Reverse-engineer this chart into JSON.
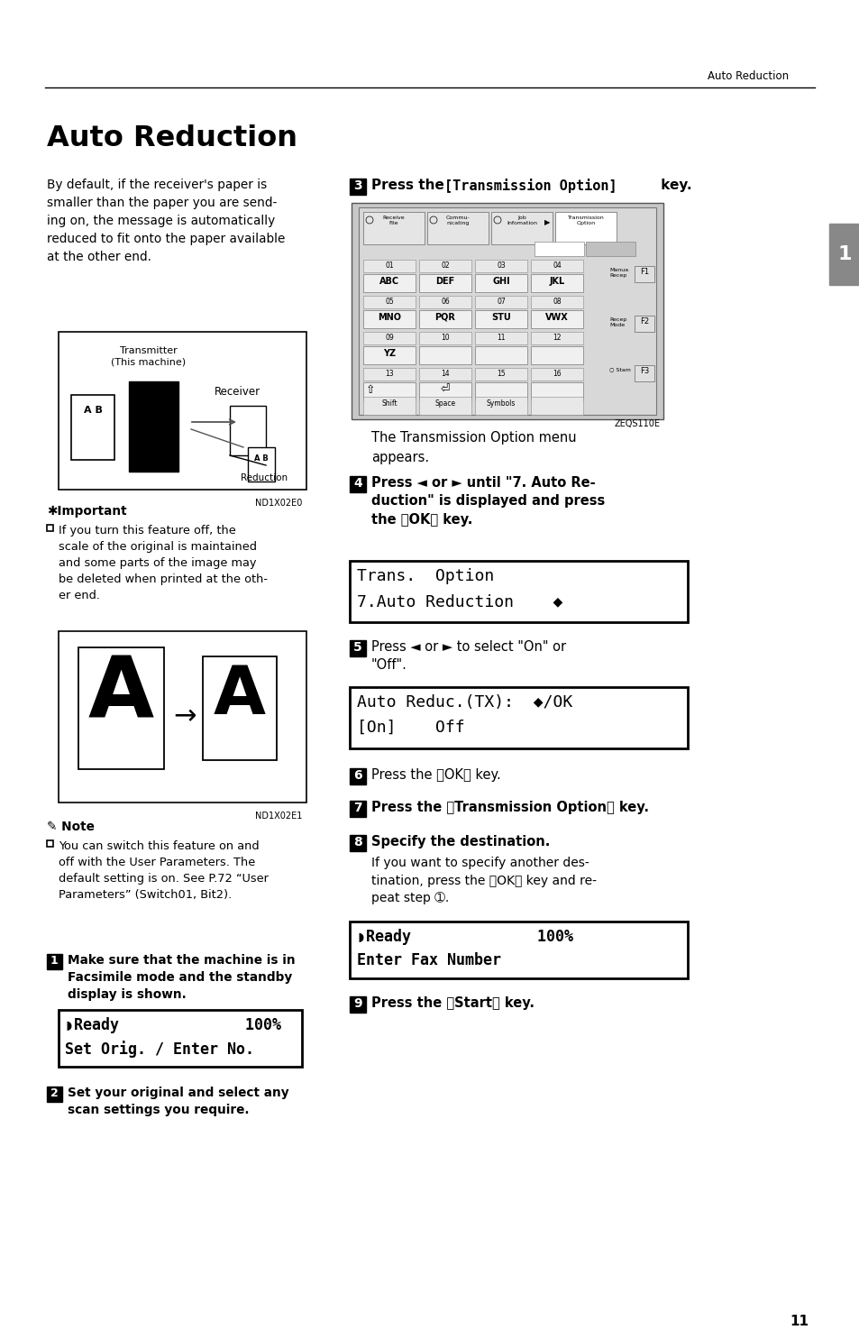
{
  "page_title": "Auto Reduction",
  "header_right": "Auto Reduction",
  "page_number": "11",
  "background_color": "#ffffff",
  "text_color": "#000000",
  "title": "Auto Reduction",
  "intro_text": "By default, if the receiver's paper is\nsmaller than the paper you are send-\ning on, the message is automatically\nreduced to fit onto the paper available\nat the other end.",
  "step3_label": "3",
  "step3_text1": "Press the ",
  "step3_bracket1": "[",
  "step3_transmission": "Transmission Option",
  "step3_bracket2": "]",
  "step3_text2": " key.",
  "step3_sub": "The Transmission Option menu\nappears.",
  "step4_label": "4",
  "step4_text": "Press ◄ or ► until \"7. Auto Re-\nduction\" is displayed and press\nthe 『OK』 key.",
  "step5_label": "5",
  "step5_text": "Press ◄ or ► to select \"On\" or\n\"Off\".",
  "step6_label": "6",
  "step6_text": "Press the 『OK』 key.",
  "step7_label": "7",
  "step7_text": "Press the 『Transmission Option』 key.",
  "step8_label": "8",
  "step8_text": "Specify the destination.",
  "step8_sub": "If you want to specify another des-\ntination, press the 『OK』 key and re-\npeat step ➀.",
  "step9_label": "9",
  "step9_text": "Press the 『Start』 key.",
  "important_title": "✱Important",
  "important_text": "If you turn this feature off, the\nscale of the original is maintained\nand some parts of the image may\nbe deleted when printed at the oth-\ner end.",
  "note_title": "Note",
  "note_text": "You can switch this feature on and\noff with the User Parameters. The\ndefault setting is on. See P.72 “User\nParameters” (Switch01, Bit2).",
  "step1_label": "1",
  "step1_text": "Make sure that the machine is in\nFacsimile mode and the standby\ndisplay is shown.",
  "step2_label": "2",
  "step2_text": "Set your original and select any\nscan settings you require.",
  "lcd1_line1": "◗Ready              100%",
  "lcd1_line2": "Set Orig. / Enter No.",
  "lcd2_line1": "Trans.  Option",
  "lcd2_line2": "7.Auto Reduction    ◆",
  "lcd3_line1": "Auto Reduc.(TX):  ◆/OK",
  "lcd3_line2": "[On]    Off",
  "lcd4_line1": "◗Ready              100%",
  "lcd4_line2": "Enter Fax Number",
  "nd1": "ND1X02E0",
  "nd2": "ND1X02E1",
  "zeq": "ZEQS110E",
  "fax_tabs": [
    "Receive\nFile",
    "Commu-\nnicating",
    "Job\nInfomation",
    "Transmission\nOption"
  ],
  "fax_rows_num": [
    [
      "01",
      "02",
      "03",
      "04"
    ],
    [
      "05",
      "06",
      "07",
      "08"
    ],
    [
      "09",
      "10",
      "11",
      "12"
    ],
    [
      "13",
      "14",
      "15",
      "16"
    ]
  ],
  "fax_rows_key": [
    [
      "ABC",
      "DEF",
      "GHI",
      "JKL"
    ],
    [
      "MNO",
      "PQR",
      "STU",
      "VWX"
    ],
    [
      "YZ",
      "",
      "",
      ""
    ],
    [
      "",
      "",
      "",
      ""
    ]
  ],
  "fax_bot": [
    "Shift",
    "Space",
    "Symbols",
    ""
  ],
  "fax_fn": [
    "F1",
    "F2",
    "F3"
  ]
}
